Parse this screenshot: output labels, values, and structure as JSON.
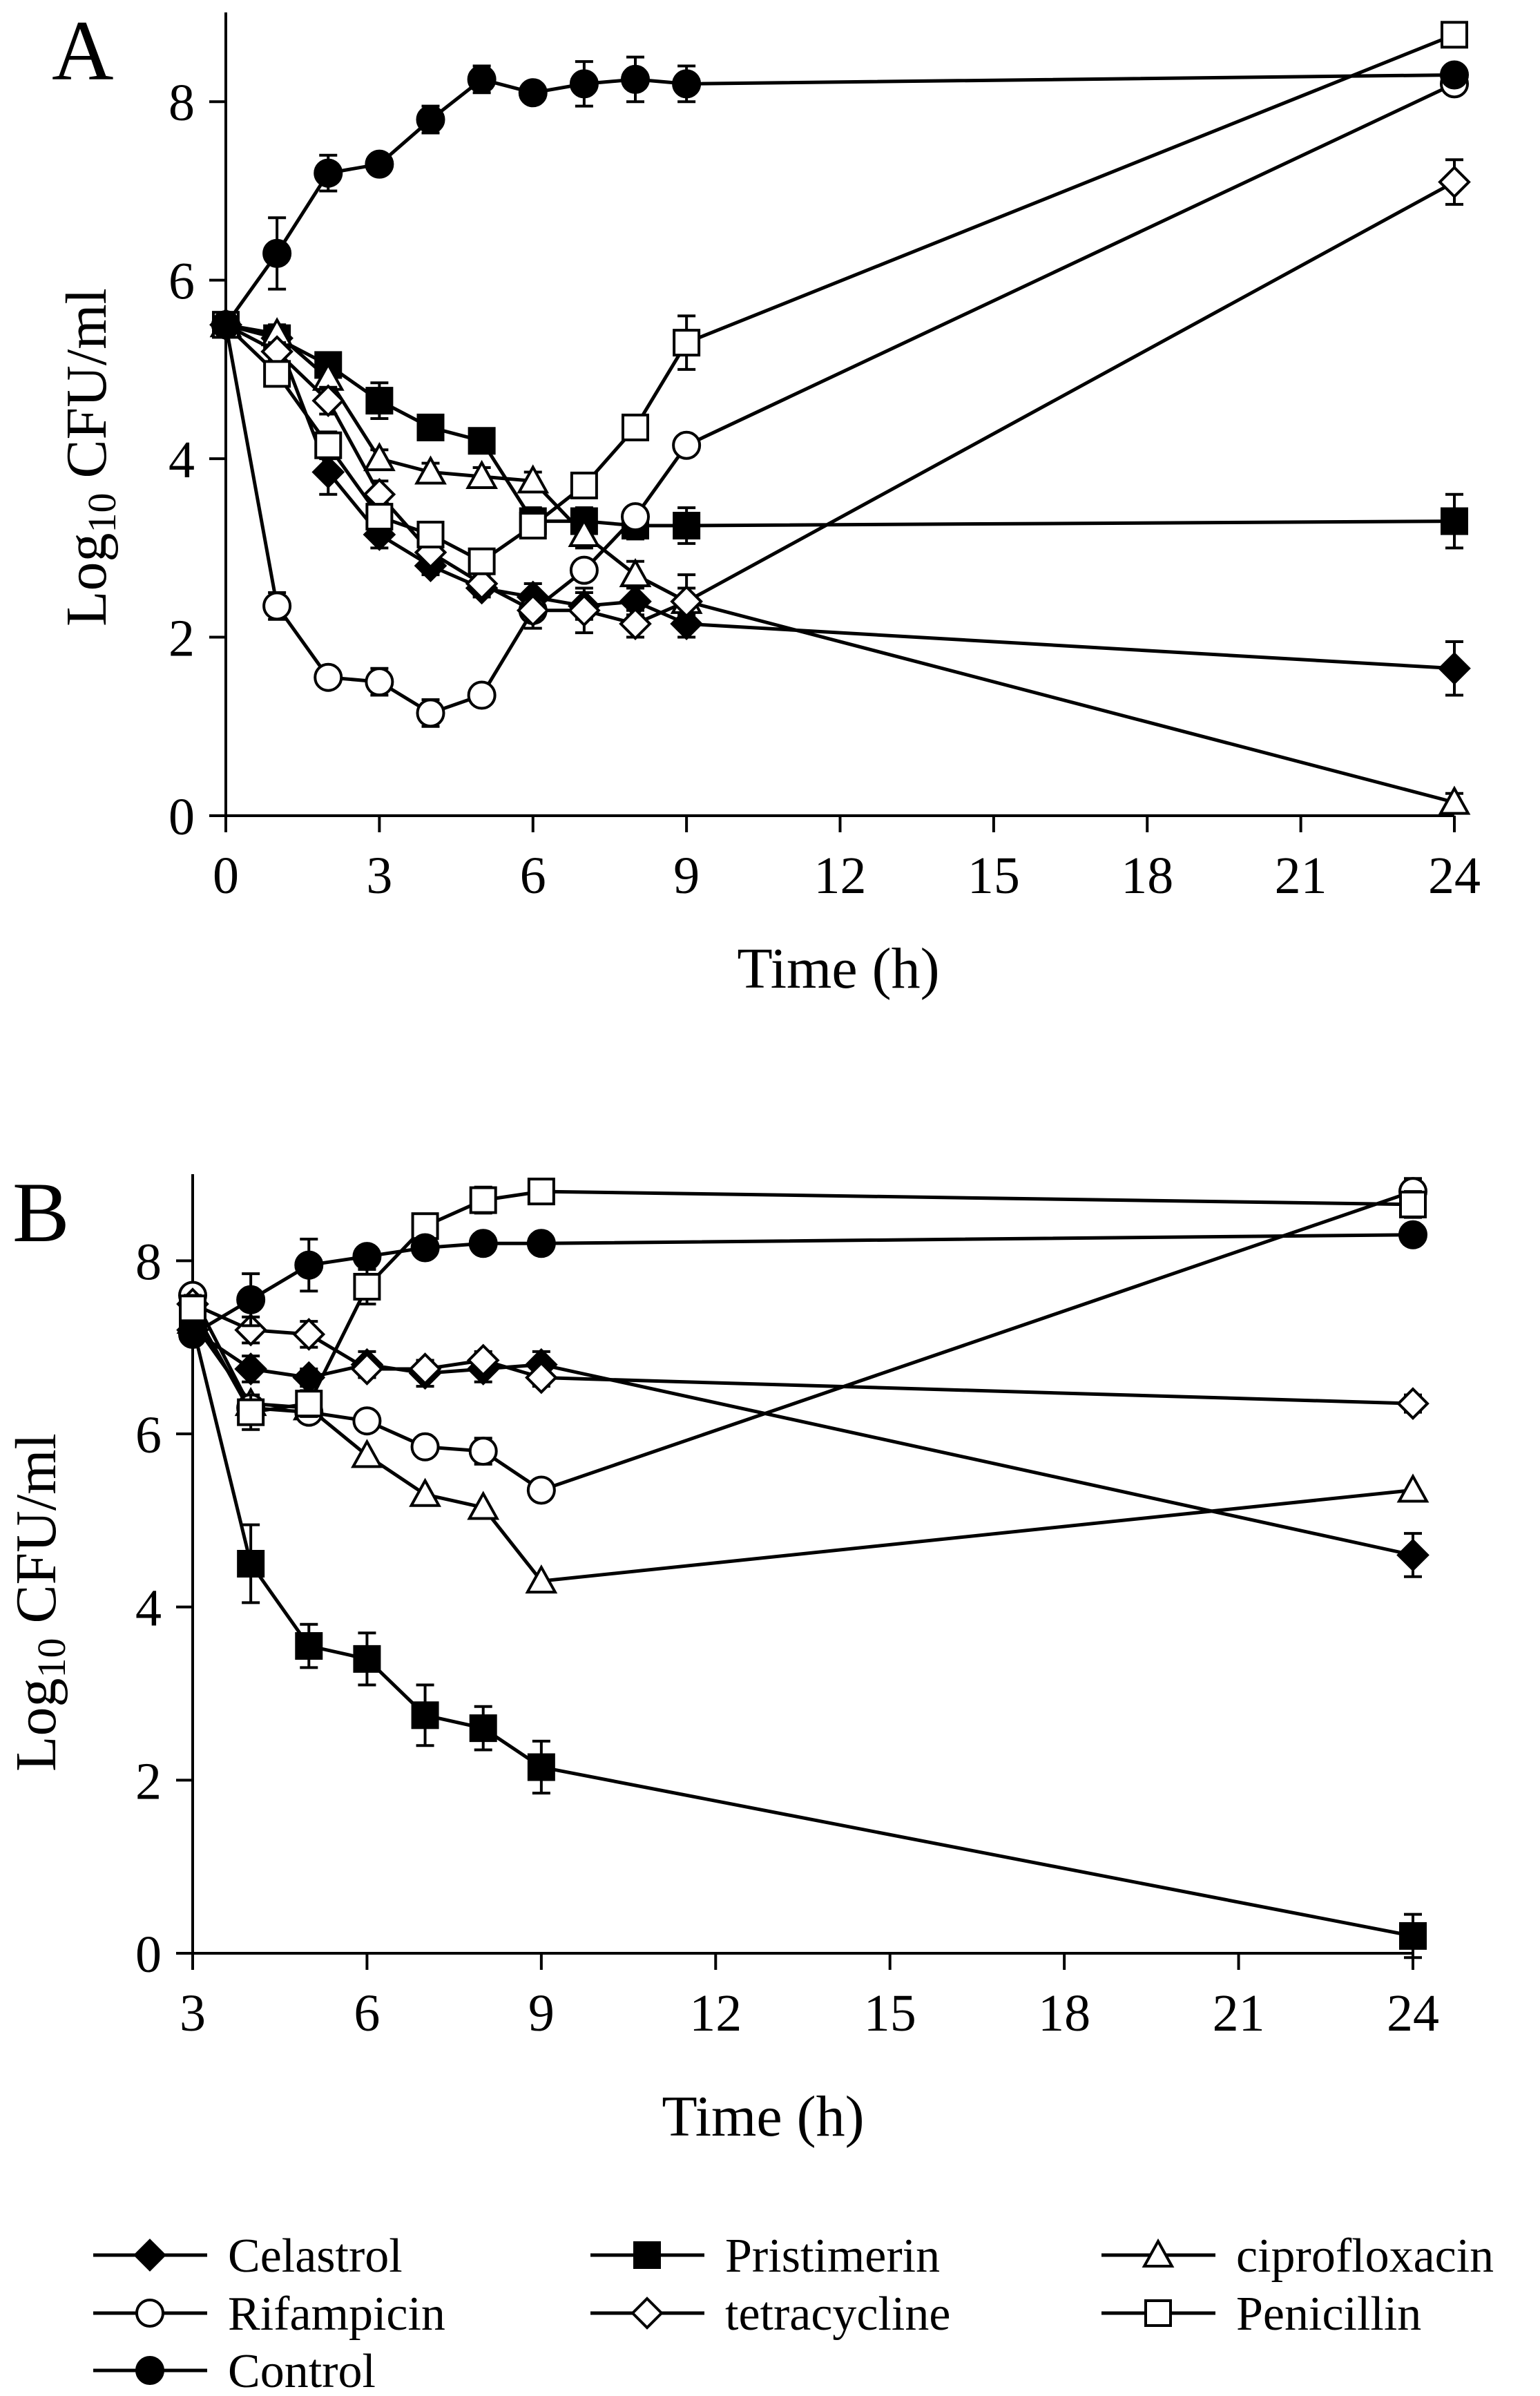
{
  "chart_data": [
    {
      "panel": "A",
      "type": "line",
      "title": "",
      "xlabel": "Time (h)",
      "ylabel_base": "Log",
      "ylabel_sub": "10",
      "ylabel_rest": " CFU/ml",
      "xlim": [
        0,
        24
      ],
      "ylim": [
        0,
        9
      ],
      "xticks": [
        0,
        3,
        6,
        9,
        12,
        15,
        18,
        21,
        24
      ],
      "yticks": [
        0,
        2,
        4,
        6,
        8
      ],
      "series": [
        {
          "name": "Celastrol",
          "marker": "diamond-filled",
          "x": [
            0,
            1,
            2,
            3,
            4,
            5,
            6,
            7,
            8,
            9,
            24
          ],
          "y": [
            5.5,
            5.35,
            3.85,
            3.15,
            2.8,
            2.55,
            2.45,
            2.35,
            2.4,
            2.15,
            1.65
          ],
          "err": [
            0.1,
            0.1,
            0.25,
            0.15,
            0.1,
            0.1,
            0.15,
            0.15,
            0.15,
            0.15,
            0.3
          ]
        },
        {
          "name": "Pristimerin",
          "marker": "square-filled",
          "x": [
            0,
            1,
            2,
            3,
            4,
            5,
            6,
            7,
            8,
            9,
            24
          ],
          "y": [
            5.5,
            5.35,
            5.05,
            4.65,
            4.35,
            4.2,
            3.3,
            3.3,
            3.25,
            3.25,
            3.3
          ],
          "err": [
            0.1,
            0.1,
            0.1,
            0.2,
            0.1,
            0.1,
            0.15,
            0.15,
            0.15,
            0.2,
            0.3
          ]
        },
        {
          "name": "ciprofloxacin",
          "marker": "triangle-open",
          "x": [
            0,
            1,
            2,
            3,
            4,
            5,
            6,
            7,
            8,
            9,
            24
          ],
          "y": [
            5.5,
            5.4,
            4.9,
            4.0,
            3.85,
            3.8,
            3.75,
            3.15,
            2.7,
            2.4,
            0.15
          ],
          "err": [
            0.1,
            0.1,
            0.1,
            0.1,
            0.1,
            0.1,
            0.1,
            0.15,
            0.15,
            0.15,
            0.1
          ]
        },
        {
          "name": "Rifampicin",
          "marker": "circle-open",
          "x": [
            0,
            1,
            2,
            3,
            4,
            5,
            6,
            7,
            8,
            9,
            24
          ],
          "y": [
            5.5,
            2.35,
            1.55,
            1.5,
            1.15,
            1.35,
            2.3,
            2.75,
            3.35,
            4.15,
            8.2
          ],
          "err": [
            0.1,
            0.15,
            0.1,
            0.15,
            0.15,
            0.1,
            0.1,
            0.1,
            0.1,
            0.1,
            0.1
          ]
        },
        {
          "name": "tetracycline",
          "marker": "diamond-open",
          "x": [
            0,
            1,
            2,
            3,
            4,
            5,
            6,
            7,
            8,
            9,
            24
          ],
          "y": [
            5.5,
            5.2,
            4.65,
            3.6,
            2.95,
            2.6,
            2.3,
            2.3,
            2.15,
            2.4,
            7.1
          ],
          "err": [
            0.1,
            0.1,
            0.15,
            0.15,
            0.1,
            0.1,
            0.2,
            0.25,
            0.15,
            0.3,
            0.25
          ]
        },
        {
          "name": "Penicillin",
          "marker": "square-open",
          "x": [
            0,
            1,
            2,
            3,
            4,
            5,
            6,
            7,
            8,
            9,
            24
          ],
          "y": [
            5.5,
            4.95,
            4.15,
            3.35,
            3.15,
            2.85,
            3.25,
            3.7,
            4.35,
            5.3,
            8.75
          ],
          "err": [
            0.1,
            0.1,
            0.15,
            0.1,
            0.1,
            0.1,
            0.1,
            0.1,
            0.1,
            0.3,
            0.1
          ]
        },
        {
          "name": "Control",
          "marker": "circle-filled",
          "x": [
            0,
            1,
            2,
            3,
            4,
            5,
            6,
            7,
            8,
            9,
            24
          ],
          "y": [
            5.5,
            6.3,
            7.2,
            7.3,
            7.8,
            8.25,
            8.1,
            8.2,
            8.25,
            8.2,
            8.3
          ],
          "err": [
            0.1,
            0.4,
            0.2,
            0.1,
            0.15,
            0.15,
            0.1,
            0.25,
            0.25,
            0.2,
            0.1
          ]
        }
      ]
    },
    {
      "panel": "B",
      "type": "line",
      "title": "",
      "xlabel": "Time (h)",
      "ylabel_base": "Log",
      "ylabel_sub": "10",
      "ylabel_rest": " CFU/ml",
      "xlim": [
        3,
        24
      ],
      "ylim": [
        0,
        9
      ],
      "xticks": [
        3,
        6,
        9,
        12,
        15,
        18,
        21,
        24
      ],
      "yticks": [
        0,
        2,
        4,
        6,
        8
      ],
      "series": [
        {
          "name": "Celastrol",
          "marker": "diamond-filled",
          "x": [
            3,
            4,
            5,
            6,
            7,
            8,
            9,
            24
          ],
          "y": [
            7.2,
            6.75,
            6.65,
            6.8,
            6.7,
            6.75,
            6.8,
            4.6
          ],
          "err": [
            0.15,
            0.15,
            0.1,
            0.15,
            0.15,
            0.15,
            0.15,
            0.25
          ]
        },
        {
          "name": "Pristimerin",
          "marker": "square-filled",
          "x": [
            3,
            4,
            5,
            6,
            7,
            8,
            9,
            24
          ],
          "y": [
            7.25,
            4.5,
            3.55,
            3.4,
            2.75,
            2.6,
            2.15,
            0.2
          ],
          "err": [
            0.15,
            0.45,
            0.25,
            0.3,
            0.35,
            0.25,
            0.3,
            0.25
          ]
        },
        {
          "name": "ciprofloxacin",
          "marker": "triangle-open",
          "x": [
            3,
            4,
            5,
            6,
            7,
            8,
            9,
            24
          ],
          "y": [
            7.3,
            6.35,
            6.3,
            5.75,
            5.3,
            5.15,
            4.3,
            5.35
          ]
        },
        {
          "name": "Rifampicin",
          "marker": "circle-open",
          "x": [
            3,
            4,
            5,
            6,
            7,
            8,
            9,
            24
          ],
          "y": [
            7.6,
            6.3,
            6.25,
            6.15,
            5.85,
            5.8,
            5.35,
            8.8
          ],
          "err": [
            0.1,
            0.1,
            0.1,
            0.1,
            0.1,
            0.15,
            0.1,
            0.15
          ]
        },
        {
          "name": "tetracycline",
          "marker": "diamond-open",
          "x": [
            3,
            4,
            5,
            6,
            7,
            8,
            9,
            24
          ],
          "y": [
            7.5,
            7.2,
            7.15,
            6.75,
            6.75,
            6.85,
            6.65,
            6.35
          ],
          "err": [
            0.1,
            0.15,
            0.15,
            0.1,
            0.1,
            0.1,
            0.1,
            0.1
          ]
        },
        {
          "name": "Penicillin",
          "marker": "square-open",
          "x": [
            3,
            4,
            5,
            6,
            7,
            8,
            9,
            24
          ],
          "y": [
            7.45,
            6.25,
            6.35,
            7.7,
            8.4,
            8.7,
            8.8,
            8.65
          ],
          "err": [
            0.15,
            0.2,
            0.15,
            0.2,
            0.1,
            0.15,
            0.1,
            0.15
          ]
        },
        {
          "name": "Control",
          "marker": "circle-filled",
          "x": [
            3,
            4,
            5,
            6,
            7,
            8,
            9,
            24
          ],
          "y": [
            7.15,
            7.55,
            7.95,
            8.05,
            8.15,
            8.2,
            8.2,
            8.3
          ],
          "err": [
            0.1,
            0.3,
            0.3,
            0.1,
            0.1,
            0.1,
            0.1,
            0.1
          ]
        }
      ]
    }
  ],
  "legend": [
    {
      "name": "Celastrol",
      "marker": "diamond-filled"
    },
    {
      "name": "Pristimerin",
      "marker": "square-filled"
    },
    {
      "name": "ciprofloxacin",
      "marker": "triangle-open"
    },
    {
      "name": "Rifampicin",
      "marker": "circle-open"
    },
    {
      "name": "tetracycline",
      "marker": "diamond-open"
    },
    {
      "name": "Penicillin",
      "marker": "square-open"
    },
    {
      "name": "Control",
      "marker": "circle-filled"
    }
  ]
}
